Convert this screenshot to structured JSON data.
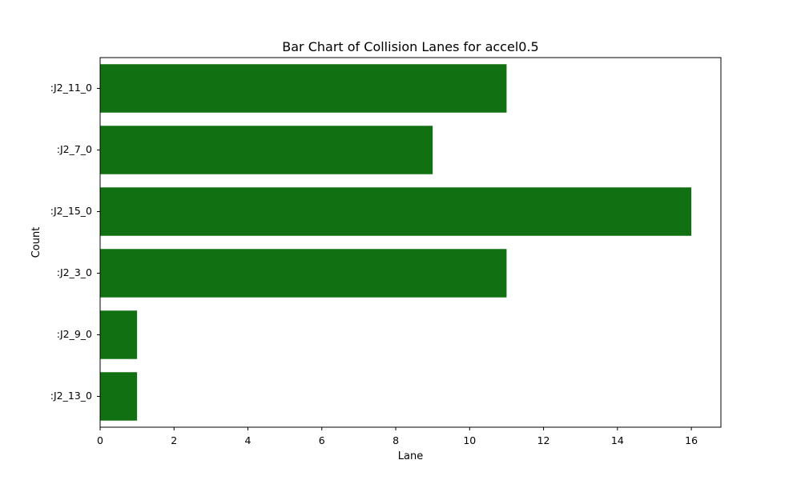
{
  "chart_data": {
    "type": "bar",
    "orientation": "horizontal",
    "title": "Bar Chart of Collision Lanes for accel0.5",
    "xlabel": "Lane",
    "ylabel": "Count",
    "categories": [
      ":J2_11_0",
      ":J2_7_0",
      ":J2_15_0",
      ":J2_3_0",
      ":J2_9_0",
      ":J2_13_0"
    ],
    "values": [
      11,
      9,
      16,
      11,
      1,
      1
    ],
    "xlim": [
      0,
      16.8
    ],
    "x_ticks": [
      0,
      2,
      4,
      6,
      8,
      10,
      12,
      14,
      16
    ],
    "grid": false,
    "colors": {
      "bar": "#117011",
      "axis": "#000000",
      "background": "#ffffff"
    }
  }
}
